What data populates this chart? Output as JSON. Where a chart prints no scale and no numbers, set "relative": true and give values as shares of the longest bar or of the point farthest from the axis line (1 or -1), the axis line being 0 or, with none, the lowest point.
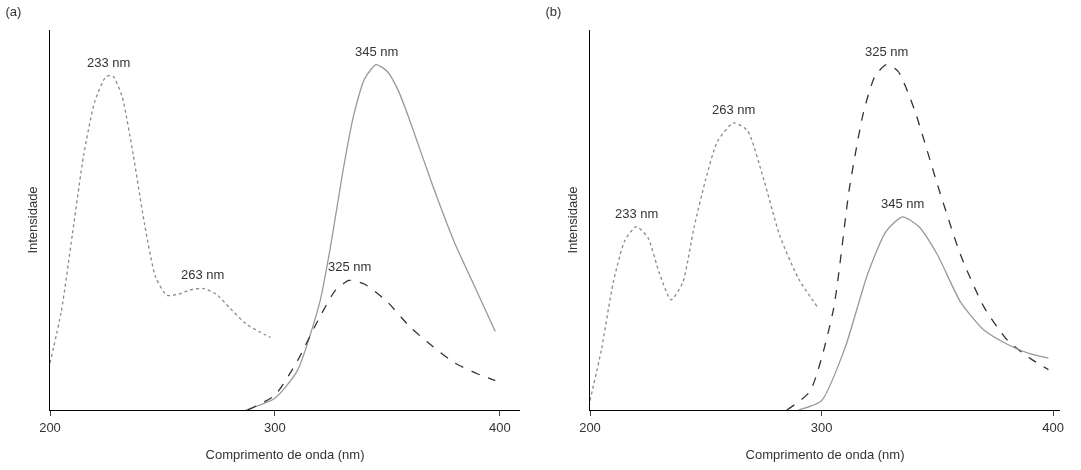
{
  "chart_data": [
    {
      "type": "line",
      "title": "(a)",
      "xlabel": "Comprimento de onda (nm)",
      "ylabel": "Intensidade",
      "relative": true,
      "xlim": [
        200,
        409
      ],
      "xticks": [
        200,
        300,
        400
      ],
      "grid": false,
      "series": [
        {
          "color": "#888888",
          "line_style": "dotted",
          "x": [
            200,
            205,
            210,
            215,
            220,
            225,
            228,
            232,
            237,
            242,
            247,
            252,
            257,
            262,
            268,
            274,
            280,
            287,
            293,
            298
          ],
          "values": [
            0.136,
            0.284,
            0.511,
            0.739,
            0.895,
            0.966,
            0.966,
            0.909,
            0.739,
            0.54,
            0.384,
            0.332,
            0.335,
            0.347,
            0.352,
            0.335,
            0.295,
            0.25,
            0.227,
            0.21
          ]
        },
        {
          "color": "#999999",
          "line_style": "solid",
          "x": [
            287,
            300,
            310,
            320,
            325,
            330,
            335,
            340,
            345,
            350,
            355,
            360,
            370,
            380,
            390,
            398
          ],
          "values": [
            0,
            0.034,
            0.114,
            0.313,
            0.483,
            0.682,
            0.852,
            0.96,
            1,
            0.98,
            0.923,
            0.838,
            0.653,
            0.483,
            0.341,
            0.227
          ]
        },
        {
          "color": "#333333",
          "line_style": "dashed",
          "x": [
            288,
            300,
            310,
            320,
            327,
            333,
            340,
            350,
            360,
            370,
            380,
            390,
            398
          ],
          "values": [
            0,
            0.043,
            0.142,
            0.27,
            0.347,
            0.375,
            0.364,
            0.313,
            0.241,
            0.185,
            0.136,
            0.105,
            0.085
          ]
        }
      ],
      "annotations": [
        {
          "text": "233 nm",
          "x": 226,
          "y": 0.966
        },
        {
          "text": "263 nm",
          "x": 268,
          "y": 0.352
        },
        {
          "text": "345 nm",
          "x": 345,
          "y": 1
        },
        {
          "text": "325 nm",
          "x": 333,
          "y": 0.375
        }
      ]
    },
    {
      "type": "line",
      "title": "(b)",
      "xlabel": "Comprimento de onda (nm)",
      "ylabel": "Intensidade",
      "relative": true,
      "xlim": [
        200,
        403
      ],
      "xticks": [
        200,
        300,
        400
      ],
      "grid": false,
      "series": [
        {
          "color": "#888888",
          "line_style": "dotted",
          "x": [
            200,
            205,
            210,
            215,
            220,
            225,
            230,
            235,
            240,
            245,
            250,
            255,
            262,
            268,
            275,
            282,
            290,
            298
          ],
          "values": [
            0.027,
            0.177,
            0.368,
            0.49,
            0.531,
            0.499,
            0.395,
            0.319,
            0.368,
            0.531,
            0.668,
            0.777,
            0.831,
            0.809,
            0.668,
            0.504,
            0.381,
            0.3
          ]
        },
        {
          "color": "#333333",
          "line_style": "dashed",
          "x": [
            285,
            295,
            305,
            312,
            318,
            323,
            328,
            333,
            340,
            350,
            360,
            370,
            380,
            390,
            398
          ],
          "values": [
            0,
            0.054,
            0.286,
            0.64,
            0.858,
            0.965,
            1,
            0.981,
            0.872,
            0.654,
            0.45,
            0.3,
            0.204,
            0.15,
            0.117
          ]
        },
        {
          "color": "#999999",
          "line_style": "solid",
          "x": [
            290,
            300,
            310,
            320,
            328,
            335,
            342,
            350,
            360,
            370,
            380,
            390,
            398
          ],
          "values": [
            0,
            0.027,
            0.177,
            0.395,
            0.518,
            0.559,
            0.531,
            0.45,
            0.313,
            0.232,
            0.191,
            0.163,
            0.15
          ]
        }
      ],
      "annotations": [
        {
          "text": "233 nm",
          "x": 220,
          "y": 0.531
        },
        {
          "text": "263 nm",
          "x": 262,
          "y": 0.831
        },
        {
          "text": "325 nm",
          "x": 328,
          "y": 1
        },
        {
          "text": "345 nm",
          "x": 335,
          "y": 0.559
        }
      ]
    }
  ]
}
